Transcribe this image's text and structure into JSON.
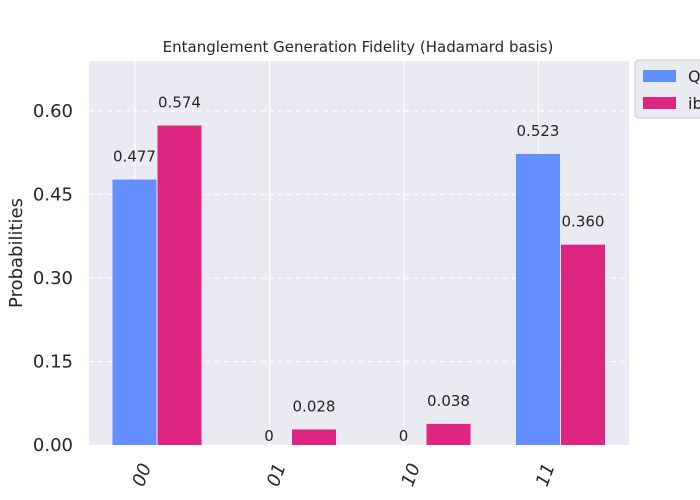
{
  "chart_data": {
    "type": "bar",
    "title": "Entanglement Generation Fidelity (Hadamard basis)",
    "xlabel": "",
    "ylabel": "Probabilities",
    "categories": [
      "00",
      "01",
      "10",
      "11"
    ],
    "ylim": [
      0,
      0.69
    ],
    "yticks": [
      0.0,
      0.15,
      0.3,
      0.45,
      0.6
    ],
    "ytick_labels": [
      "0.00",
      "0.15",
      "0.30",
      "0.45",
      "0.60"
    ],
    "grid": true,
    "legend_position": "outside top-right",
    "series": [
      {
        "name": "Q",
        "color": "#648fff",
        "values": [
          0.477,
          0,
          0,
          0.523
        ],
        "labels": [
          "0.477",
          "0",
          "0",
          "0.523"
        ]
      },
      {
        "name": "ib",
        "color": "#dc267f",
        "values": [
          0.574,
          0.028,
          0.038,
          0.36
        ],
        "labels": [
          "0.574",
          "0.028",
          "0.038",
          "0.360"
        ]
      }
    ]
  }
}
